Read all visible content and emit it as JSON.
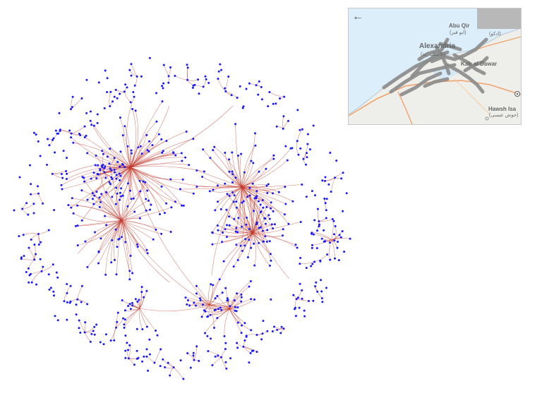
{
  "graph": {
    "edge_color": "#c0392b",
    "node_color": "#1a1aff"
  },
  "map": {
    "back_icon": "arrow-left-icon",
    "water_color": "#dbeefa",
    "land_color": "#eeeeea",
    "route_color": "#8c8c8c",
    "labels": {
      "abu_qir": "Abu Qir",
      "abu_qir_ar": "(ابو قير)",
      "alexandria": "Alexandria",
      "alexandria_ar": "(الاسكندرية)",
      "kafr_al_dawar": "Kafr al Dawar",
      "idku_ar": "(ادكو)",
      "hawsh_isa": "Hawsh Isa",
      "hawsh_isa_ar": "(حوش عيسى)"
    }
  }
}
